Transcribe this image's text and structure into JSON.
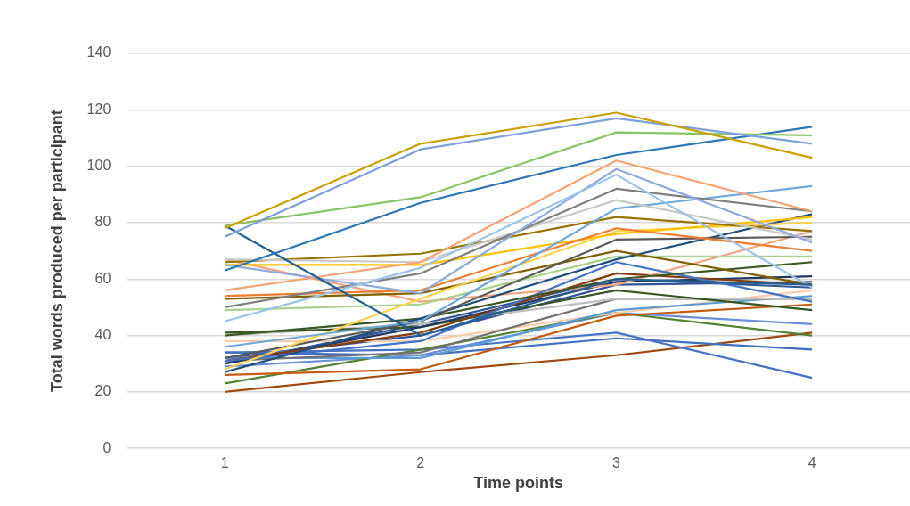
{
  "chart_data": {
    "type": "line",
    "xlabel": "Time points",
    "ylabel": "Total words produced per participant",
    "categories": [
      "1",
      "2",
      "3",
      "4"
    ],
    "ylim": [
      0,
      140
    ],
    "yticks": [
      0,
      20,
      40,
      60,
      80,
      100,
      120,
      140
    ],
    "grid": "y",
    "legend": false,
    "marker": "none",
    "line_style": "solid",
    "series": [
      {
        "color": "#c9a000",
        "values": [
          78,
          108,
          119,
          103
        ]
      },
      {
        "color": "#7f9fdc",
        "values": [
          75,
          106,
          117,
          108
        ]
      },
      {
        "color": "#8bc36a",
        "values": [
          79,
          89,
          112,
          111
        ]
      },
      {
        "color": "#2e75b6",
        "values": [
          63,
          87,
          104,
          114
        ]
      },
      {
        "color": "#255e91",
        "values": [
          79,
          40,
          60,
          58
        ]
      },
      {
        "color": "#f4a372",
        "values": [
          56,
          66,
          102,
          84
        ]
      },
      {
        "color": "#9dc3e6",
        "values": [
          45,
          64,
          97,
          57
        ]
      },
      {
        "color": "#8faadc",
        "values": [
          65,
          55,
          99,
          73
        ]
      },
      {
        "color": "#7f7f7f",
        "values": [
          50,
          62,
          92,
          84
        ]
      },
      {
        "color": "#c9c9c9",
        "values": [
          67,
          66,
          88,
          74
        ]
      },
      {
        "color": "#6fa8dc",
        "values": [
          36,
          45,
          85,
          93
        ]
      },
      {
        "color": "#997300",
        "values": [
          66,
          69,
          82,
          77
        ]
      },
      {
        "color": "#ed7d31",
        "values": [
          54,
          56,
          78,
          70
        ]
      },
      {
        "color": "#ffc000",
        "values": [
          65,
          65,
          76,
          82
        ]
      },
      {
        "color": "#ffd34d",
        "values": [
          28,
          53,
          77,
          80
        ]
      },
      {
        "color": "#595959",
        "values": [
          32,
          45,
          74,
          75
        ]
      },
      {
        "color": "#7f6000",
        "values": [
          53,
          55,
          70,
          58
        ]
      },
      {
        "color": "#1f4e79",
        "values": [
          27,
          46,
          67,
          83
        ]
      },
      {
        "color": "#a9d18e",
        "values": [
          49,
          51,
          68,
          68
        ]
      },
      {
        "color": "#385723",
        "values": [
          40,
          46,
          60,
          66
        ]
      },
      {
        "color": "#4472c4",
        "values": [
          31,
          38,
          66,
          52
        ]
      },
      {
        "color": "#f4a582",
        "values": [
          67,
          52,
          58,
          77
        ]
      },
      {
        "color": "#843c0c",
        "values": [
          31,
          41,
          62,
          58
        ]
      },
      {
        "color": "#203864",
        "values": [
          30,
          43,
          59,
          61
        ]
      },
      {
        "color": "#375623",
        "values": [
          41,
          43,
          56,
          49
        ]
      },
      {
        "color": "#bfbfbf",
        "values": [
          40,
          44,
          53,
          53
        ]
      },
      {
        "color": "#767171",
        "values": [
          31,
          34,
          53,
          53
        ]
      },
      {
        "color": "#5b9bd5",
        "values": [
          32,
          32,
          49,
          54
        ]
      },
      {
        "color": "#f8cbad",
        "values": [
          38,
          38,
          48,
          56
        ]
      },
      {
        "color": "#c55a11",
        "values": [
          26,
          28,
          47,
          51
        ]
      },
      {
        "color": "#548235",
        "values": [
          23,
          35,
          48,
          40
        ]
      },
      {
        "color": "#6a8fd4",
        "values": [
          29,
          33,
          48,
          44
        ]
      },
      {
        "color": "#4472c4",
        "values": [
          34,
          35,
          41,
          25
        ]
      },
      {
        "color": "#3f6fc0",
        "values": [
          34,
          33,
          39,
          35
        ]
      },
      {
        "color": "#9e480e",
        "values": [
          20,
          27,
          33,
          41
        ]
      },
      {
        "color": "#2f5597",
        "values": [
          30,
          44,
          60,
          57
        ]
      },
      {
        "color": "#305496",
        "values": [
          32,
          40,
          58,
          59
        ]
      }
    ]
  }
}
